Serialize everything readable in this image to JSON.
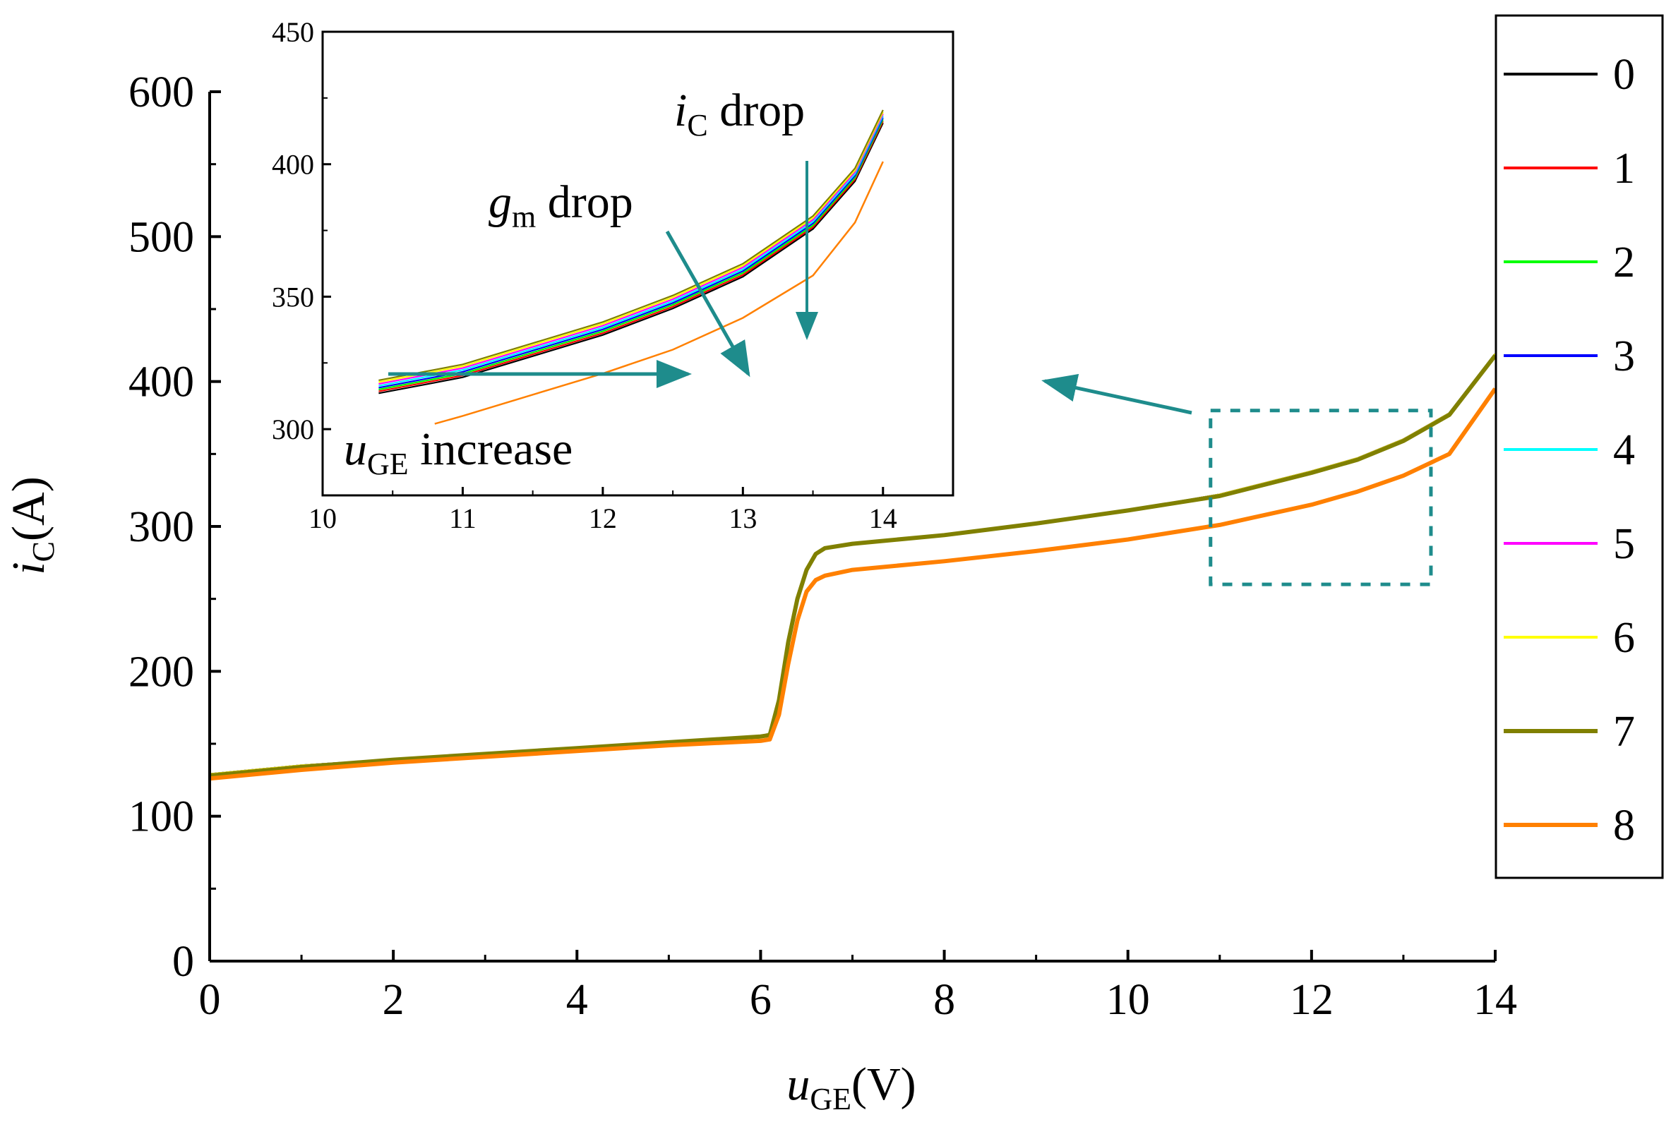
{
  "chart_data": {
    "type": "line",
    "main": {
      "xlabel": {
        "var": "u",
        "sub": "GE",
        "unit": "(V)"
      },
      "ylabel": {
        "var": "i",
        "sub": "C",
        "unit": "(A)"
      },
      "xlim": [
        0,
        14
      ],
      "ylim": [
        0,
        600
      ],
      "xticks": [
        "0",
        "2",
        "4",
        "6",
        "8",
        "10",
        "12",
        "14"
      ],
      "yticks": [
        "0",
        "100",
        "200",
        "300",
        "400",
        "500",
        "600"
      ],
      "x": [
        0,
        1,
        2,
        3,
        4,
        5,
        6,
        6.1,
        6.2,
        6.3,
        6.4,
        6.5,
        6.6,
        6.7,
        7,
        8,
        9,
        10,
        11,
        12,
        12.5,
        13,
        13.5,
        14
      ],
      "series": [
        {
          "name": "0",
          "color": "#000000",
          "values": [
            129,
            135,
            139,
            143,
            147,
            151,
            155,
            157,
            180,
            220,
            250,
            270,
            281,
            285,
            288,
            294,
            302,
            311,
            322,
            338,
            347,
            360,
            378,
            419
          ]
        },
        {
          "name": "1",
          "color": "#ff0000",
          "values": [
            129,
            135,
            139,
            143,
            147,
            151,
            155,
            157,
            180,
            220,
            250,
            270,
            281,
            285,
            288,
            294,
            302,
            311,
            322,
            338,
            347,
            360,
            378,
            419
          ]
        },
        {
          "name": "2",
          "color": "#00ff00",
          "values": [
            129,
            135,
            139,
            143,
            147,
            151,
            155,
            157,
            180,
            220,
            250,
            270,
            281,
            285,
            288,
            294,
            302,
            311,
            322,
            338,
            347,
            360,
            378,
            419
          ]
        },
        {
          "name": "3",
          "color": "#0000ff",
          "values": [
            129,
            135,
            139,
            143,
            147,
            151,
            155,
            157,
            180,
            220,
            250,
            270,
            281,
            285,
            288,
            294,
            302,
            311,
            322,
            338,
            347,
            360,
            378,
            419
          ]
        },
        {
          "name": "4",
          "color": "#00ffff",
          "values": [
            129,
            135,
            139,
            143,
            147,
            151,
            155,
            157,
            180,
            220,
            250,
            270,
            281,
            285,
            288,
            294,
            302,
            311,
            322,
            338,
            347,
            360,
            378,
            419
          ]
        },
        {
          "name": "5",
          "color": "#ff00ff",
          "values": [
            129,
            135,
            139,
            143,
            147,
            151,
            155,
            157,
            180,
            220,
            250,
            270,
            281,
            285,
            288,
            294,
            302,
            311,
            322,
            338,
            347,
            360,
            378,
            419
          ]
        },
        {
          "name": "6",
          "color": "#ffff00",
          "values": [
            129,
            135,
            139,
            143,
            147,
            151,
            155,
            157,
            180,
            220,
            250,
            270,
            281,
            285,
            288,
            294,
            302,
            311,
            322,
            338,
            347,
            360,
            378,
            419
          ]
        },
        {
          "name": "7",
          "color": "#808000",
          "values": [
            128,
            134,
            139,
            143,
            147,
            151,
            155,
            156,
            180,
            220,
            250,
            270,
            281,
            285,
            288,
            294,
            302,
            311,
            321,
            337,
            346,
            359,
            377,
            418
          ]
        },
        {
          "name": "8",
          "color": "#ff8000",
          "values": [
            126,
            132,
            137,
            141,
            145,
            149,
            152,
            153,
            170,
            205,
            235,
            255,
            263,
            266,
            270,
            276,
            283,
            291,
            301,
            315,
            324,
            335,
            350,
            395
          ]
        }
      ],
      "zoom_box": {
        "x": [
          10.9,
          13.3
        ],
        "y": [
          260,
          380
        ]
      }
    },
    "inset": {
      "xlim": [
        10,
        14.5
      ],
      "ylim": [
        275,
        450
      ],
      "xticks": [
        "10",
        "11",
        "12",
        "13",
        "14"
      ],
      "yticks": [
        "300",
        "350",
        "400",
        "450"
      ],
      "x": [
        10.4,
        10.8,
        11,
        11.5,
        12,
        12.5,
        13,
        13.5,
        13.8,
        14
      ],
      "main_values": [
        316,
        320,
        322,
        330,
        338,
        348,
        360,
        378,
        396,
        418
      ],
      "orange": {
        "x": [
          10.8,
          11,
          11.5,
          12,
          12.5,
          13,
          13.5,
          13.8,
          14
        ],
        "values": [
          302,
          305,
          313,
          321,
          330,
          342,
          358,
          378,
          401
        ]
      },
      "annotations": {
        "ic_drop": {
          "var": "i",
          "sub": "C",
          "text": " drop"
        },
        "gm_drop": {
          "var": "g",
          "sub": "m",
          "text": " drop"
        },
        "uge_increase": {
          "var": "u",
          "sub": "GE",
          "text": " increase"
        }
      }
    },
    "legend": {
      "position": "right"
    },
    "accent_color": "#1e8c8c"
  }
}
